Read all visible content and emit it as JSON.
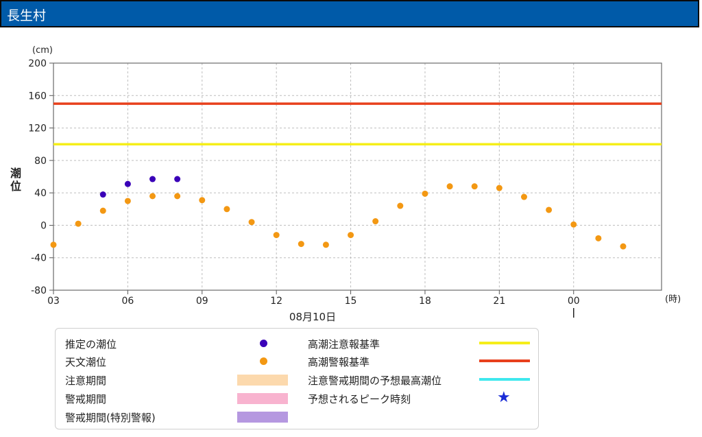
{
  "header": {
    "title": "長生村"
  },
  "colors": {
    "header_bg": "#005aa8",
    "estimated": "#3a00b8",
    "astronomical": "#f39813",
    "caution_line": "#f5ee1a",
    "warning_line": "#e8401c",
    "forecast_peak_line": "#3fe8ee",
    "caution_period": "#fcd9ad",
    "warning_period": "#f8b3cf",
    "special_warning_period": "#b598e0",
    "star": "#1a2cd6"
  },
  "chart_data": {
    "type": "scatter",
    "ylabel": "潮位",
    "yunit": "(cm)",
    "xunit": "(時)",
    "date_label": "08月10日",
    "ylim": [
      -80,
      200
    ],
    "y_ticks": [
      -80,
      -40,
      0,
      40,
      80,
      120,
      160,
      200
    ],
    "x_ticks": [
      "06",
      "09",
      "12",
      "15",
      "18",
      "21",
      "00",
      "03"
    ],
    "grid": true,
    "thresholds": [
      {
        "name": "高潮注意報基準",
        "value": 100
      },
      {
        "name": "高潮警報基準",
        "value": 150
      }
    ],
    "series": [
      {
        "name": "推定の潮位",
        "points": [
          {
            "t": "05:00",
            "y": 38
          },
          {
            "t": "06:00",
            "y": 51
          },
          {
            "t": "07:00",
            "y": 57
          },
          {
            "t": "08:00",
            "y": 57
          }
        ]
      },
      {
        "name": "天文潮位",
        "points": [
          {
            "t": "04:00",
            "y": 2
          },
          {
            "t": "05:00",
            "y": 18
          },
          {
            "t": "06:00",
            "y": 30
          },
          {
            "t": "07:00",
            "y": 36
          },
          {
            "t": "08:00",
            "y": 36
          },
          {
            "t": "09:00",
            "y": 31
          },
          {
            "t": "10:00",
            "y": 20
          },
          {
            "t": "11:00",
            "y": 4
          },
          {
            "t": "12:00",
            "y": -12
          },
          {
            "t": "13:00",
            "y": -23
          },
          {
            "t": "14:00",
            "y": -24
          },
          {
            "t": "15:00",
            "y": -12
          },
          {
            "t": "16:00",
            "y": 5
          },
          {
            "t": "17:00",
            "y": 24
          },
          {
            "t": "18:00",
            "y": 39
          },
          {
            "t": "19:00",
            "y": 48
          },
          {
            "t": "20:00",
            "y": 48
          },
          {
            "t": "21:00",
            "y": 46
          },
          {
            "t": "22:00",
            "y": 35
          },
          {
            "t": "23:00",
            "y": 19
          },
          {
            "t": "00:00",
            "y": 1
          },
          {
            "t": "01:00",
            "y": -16
          },
          {
            "t": "02:00",
            "y": -26
          },
          {
            "t": "03:00",
            "y": -24
          }
        ]
      }
    ]
  },
  "legend": {
    "estimated": "推定の潮位",
    "astronomical": "天文潮位",
    "caution_period": "注意期間",
    "warning_period": "警戒期間",
    "special_warning_period": "警戒期間(特別警報)",
    "caution_line": "高潮注意報基準",
    "warning_line": "高潮警報基準",
    "forecast_peak_line": "注意警戒期間の予想最高潮位",
    "peak_time": "予想されるピーク時刻"
  }
}
